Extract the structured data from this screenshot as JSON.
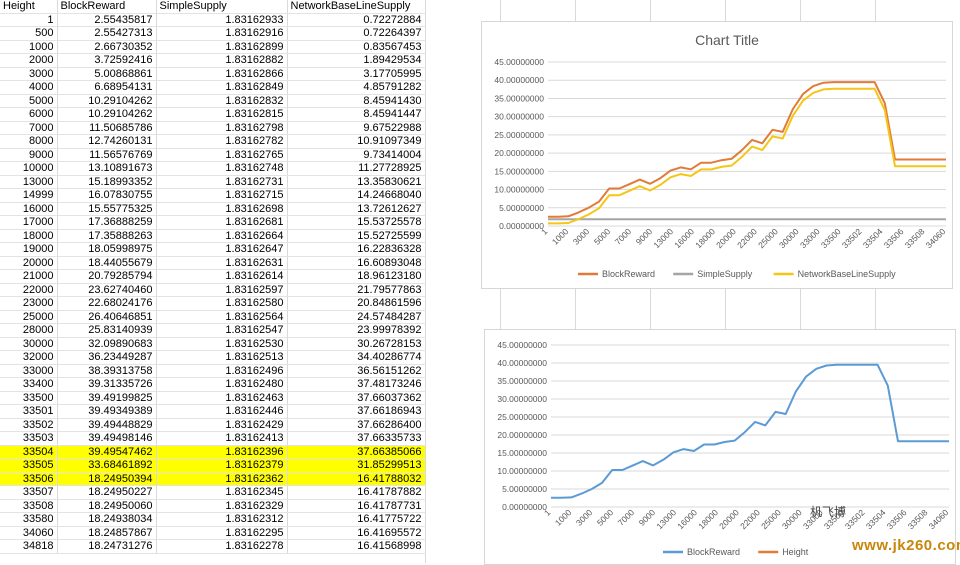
{
  "sheet": {
    "headers": [
      "Height",
      "BlockReward",
      "SimpleSupply",
      "NetworkBaseLineSupply"
    ],
    "rows": [
      [
        "1",
        "2.55435817",
        "1.83162933",
        "0.72272884"
      ],
      [
        "500",
        "2.55427313",
        "1.83162916",
        "0.72264397"
      ],
      [
        "1000",
        "2.66730352",
        "1.83162899",
        "0.83567453"
      ],
      [
        "2000",
        "3.72592416",
        "1.83162882",
        "1.89429534"
      ],
      [
        "3000",
        "5.00868861",
        "1.83162866",
        "3.17705995"
      ],
      [
        "4000",
        "6.68954131",
        "1.83162849",
        "4.85791282"
      ],
      [
        "5000",
        "10.29104262",
        "1.83162832",
        "8.45941430"
      ],
      [
        "6000",
        "10.29104262",
        "1.83162815",
        "8.45941447"
      ],
      [
        "7000",
        "11.50685786",
        "1.83162798",
        "9.67522988"
      ],
      [
        "8000",
        "12.74260131",
        "1.83162782",
        "10.91097349"
      ],
      [
        "9000",
        "11.56576769",
        "1.83162765",
        "9.73414004"
      ],
      [
        "10000",
        "13.10891673",
        "1.83162748",
        "11.27728925"
      ],
      [
        "13000",
        "15.18993352",
        "1.83162731",
        "13.35830621"
      ],
      [
        "14999",
        "16.07830755",
        "1.83162715",
        "14.24668040"
      ],
      [
        "16000",
        "15.55775325",
        "1.83162698",
        "13.72612627"
      ],
      [
        "17000",
        "17.36888259",
        "1.83162681",
        "15.53725578"
      ],
      [
        "18000",
        "17.35888263",
        "1.83162664",
        "15.52725599"
      ],
      [
        "19000",
        "18.05998975",
        "1.83162647",
        "16.22836328"
      ],
      [
        "20000",
        "18.44055679",
        "1.83162631",
        "16.60893048"
      ],
      [
        "21000",
        "20.79285794",
        "1.83162614",
        "18.96123180"
      ],
      [
        "22000",
        "23.62740460",
        "1.83162597",
        "21.79577863"
      ],
      [
        "23000",
        "22.68024176",
        "1.83162580",
        "20.84861596"
      ],
      [
        "25000",
        "26.40646851",
        "1.83162564",
        "24.57484287"
      ],
      [
        "28000",
        "25.83140939",
        "1.83162547",
        "23.99978392"
      ],
      [
        "30000",
        "32.09890683",
        "1.83162530",
        "30.26728153"
      ],
      [
        "32000",
        "36.23449287",
        "1.83162513",
        "34.40286774"
      ],
      [
        "33000",
        "38.39313758",
        "1.83162496",
        "36.56151262"
      ],
      [
        "33400",
        "39.31335726",
        "1.83162480",
        "37.48173246"
      ],
      [
        "33500",
        "39.49199825",
        "1.83162463",
        "37.66037362"
      ],
      [
        "33501",
        "39.49349389",
        "1.83162446",
        "37.66186943"
      ],
      [
        "33502",
        "39.49448829",
        "1.83162429",
        "37.66286400"
      ],
      [
        "33503",
        "39.49498146",
        "1.83162413",
        "37.66335733"
      ],
      [
        "33504",
        "39.49547462",
        "1.83162396",
        "37.66385066"
      ],
      [
        "33505",
        "33.68461892",
        "1.83162379",
        "31.85299513"
      ],
      [
        "33506",
        "18.24950394",
        "1.83162362",
        "16.41788032"
      ],
      [
        "33507",
        "18.24950227",
        "1.83162345",
        "16.41787882"
      ],
      [
        "33508",
        "18.24950060",
        "1.83162329",
        "16.41787731"
      ],
      [
        "33580",
        "18.24938034",
        "1.83162312",
        "16.41775722"
      ],
      [
        "34060",
        "18.24857867",
        "1.83162295",
        "16.41695572"
      ],
      [
        "34818",
        "18.24731276",
        "1.83162278",
        "16.41568998"
      ]
    ],
    "highlight_rows": [
      32,
      33,
      34
    ],
    "highlight_color": "#ffff00"
  },
  "chart_data": [
    {
      "type": "line",
      "title": "Chart Title",
      "xlabel": "",
      "ylabel": "",
      "ylim": [
        0,
        45
      ],
      "y_ticks": [
        "0.00000000",
        "5.00000000",
        "10.00000000",
        "15.00000000",
        "20.00000000",
        "25.00000000",
        "30.00000000",
        "35.00000000",
        "40.00000000",
        "45.00000000"
      ],
      "x_tick_labels": [
        "1",
        "1000",
        "3000",
        "5000",
        "7000",
        "9000",
        "13000",
        "16000",
        "18000",
        "20000",
        "22000",
        "25000",
        "30000",
        "33000",
        "33500",
        "33502",
        "33504",
        "33506",
        "33508",
        "34060"
      ],
      "legend_position": "bottom",
      "grid": true,
      "series": [
        {
          "name": "BlockReward",
          "color": "#e07b39",
          "values": [
            2.55435817,
            2.55427313,
            2.66730352,
            3.72592416,
            5.00868861,
            6.68954131,
            10.29104262,
            10.29104262,
            11.50685786,
            12.74260131,
            11.56576769,
            13.10891673,
            15.18993352,
            16.07830755,
            15.55775325,
            17.36888259,
            17.35888263,
            18.05998975,
            18.44055679,
            20.79285794,
            23.6274046,
            22.68024176,
            26.40646851,
            25.83140939,
            32.09890683,
            36.23449287,
            38.39313758,
            39.31335726,
            39.49199825,
            39.49349389,
            39.49448829,
            39.49498146,
            39.49547462,
            33.68461892,
            18.24950394,
            18.24950227,
            18.2495006,
            18.24938034,
            18.24857867,
            18.24731276
          ]
        },
        {
          "name": "SimpleSupply",
          "color": "#a5a5a5",
          "values": [
            1.83162933,
            1.83162916,
            1.83162899,
            1.83162882,
            1.83162866,
            1.83162849,
            1.83162832,
            1.83162815,
            1.83162798,
            1.83162782,
            1.83162765,
            1.83162748,
            1.83162731,
            1.83162715,
            1.83162698,
            1.83162681,
            1.83162664,
            1.83162647,
            1.83162631,
            1.83162614,
            1.83162597,
            1.8316258,
            1.83162564,
            1.83162547,
            1.8316253,
            1.83162513,
            1.83162496,
            1.8316248,
            1.83162463,
            1.83162446,
            1.83162429,
            1.83162413,
            1.83162396,
            1.83162379,
            1.83162362,
            1.83162345,
            1.83162329,
            1.83162312,
            1.83162295,
            1.83162278
          ]
        },
        {
          "name": "NetworkBaseLineSupply",
          "color": "#f5c518",
          "values": [
            0.72272884,
            0.72264397,
            0.83567453,
            1.89429534,
            3.17705995,
            4.85791282,
            8.4594143,
            8.45941447,
            9.67522988,
            10.91097349,
            9.73414004,
            11.27728925,
            13.35830621,
            14.2466804,
            13.72612627,
            15.53725578,
            15.52725599,
            16.22836328,
            16.60893048,
            18.9612318,
            21.79577863,
            20.84861596,
            24.57484287,
            23.99978392,
            30.26728153,
            34.40286774,
            36.56151262,
            37.48173246,
            37.66037362,
            37.66186943,
            37.662864,
            37.66335733,
            37.66385066,
            31.85299513,
            16.41788032,
            16.41787882,
            16.41787731,
            16.41775722,
            16.41695572,
            16.41568998
          ]
        }
      ]
    },
    {
      "type": "line",
      "title": "",
      "xlabel": "",
      "ylabel": "",
      "ylim": [
        0,
        45
      ],
      "y_ticks": [
        "0.00000000",
        "5.00000000",
        "10.00000000",
        "15.00000000",
        "20.00000000",
        "25.00000000",
        "30.00000000",
        "35.00000000",
        "40.00000000",
        "45.00000000"
      ],
      "x_tick_labels": [
        "1",
        "1000",
        "3000",
        "5000",
        "7000",
        "9000",
        "13000",
        "16000",
        "18000",
        "20000",
        "22000",
        "25000",
        "30000",
        "33000",
        "33500",
        "33502",
        "33504",
        "33506",
        "33508",
        "34060"
      ],
      "legend_position": "bottom",
      "grid": true,
      "series": [
        {
          "name": "BlockReward",
          "color": "#5b9bd5",
          "values": [
            2.55435817,
            2.55427313,
            2.66730352,
            3.72592416,
            5.00868861,
            6.68954131,
            10.29104262,
            10.29104262,
            11.50685786,
            12.74260131,
            11.56576769,
            13.10891673,
            15.18993352,
            16.07830755,
            15.55775325,
            17.36888259,
            17.35888263,
            18.05998975,
            18.44055679,
            20.79285794,
            23.6274046,
            22.68024176,
            26.40646851,
            25.83140939,
            32.09890683,
            36.23449287,
            38.39313758,
            39.31335726,
            39.49199825,
            39.49349389,
            39.49448829,
            39.49498146,
            39.49547462,
            33.68461892,
            18.24950394,
            18.24950227,
            18.2495006,
            18.24938034,
            18.24857867,
            18.24731276
          ]
        },
        {
          "name": "Height",
          "color": "#e07b39",
          "values": []
        }
      ]
    }
  ],
  "watermark": {
    "site_label": "机飞博",
    "url": "www.jk260.com"
  }
}
